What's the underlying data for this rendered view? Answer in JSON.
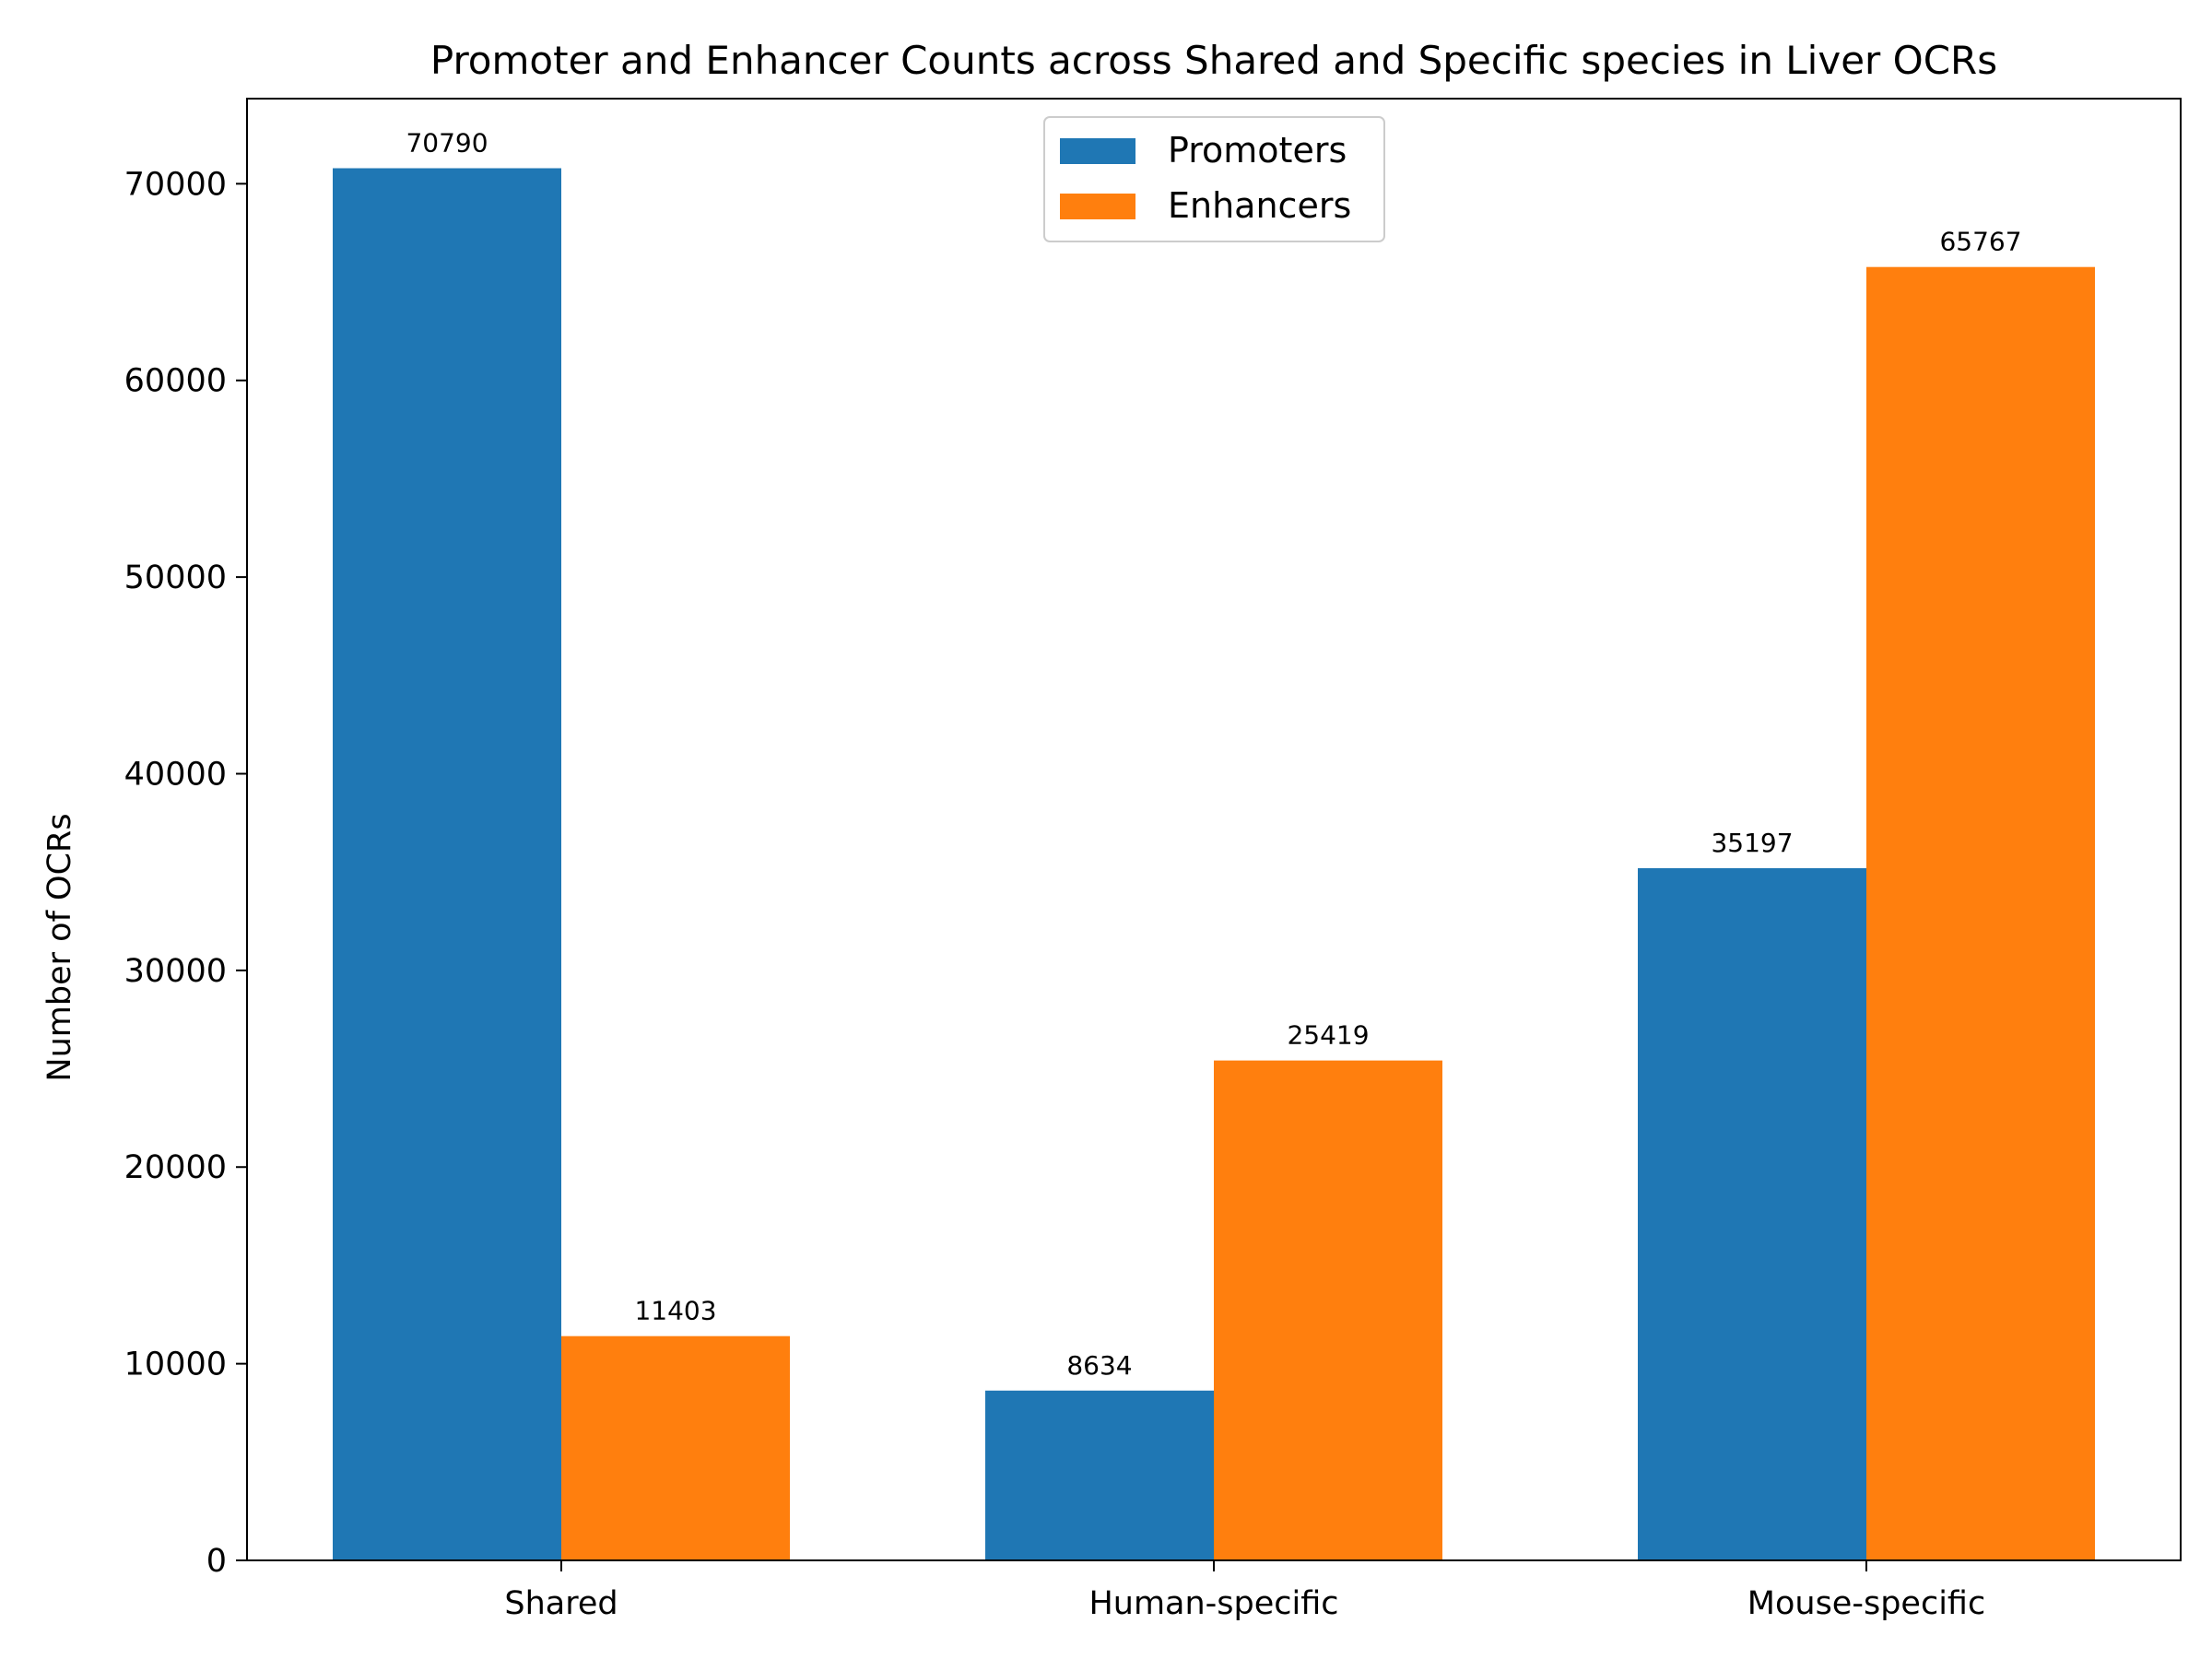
{
  "chart_data": {
    "type": "bar",
    "title": "Promoter and Enhancer Counts across Shared and Specific species in Liver OCRs",
    "xlabel": "",
    "ylabel": "Number of OCRs",
    "categories": [
      "Shared",
      "Human-specific",
      "Mouse-specific"
    ],
    "series": [
      {
        "name": "Promoters",
        "color": "#1f77b4",
        "values": [
          70790,
          8634,
          35197
        ]
      },
      {
        "name": "Enhancers",
        "color": "#ff7f0e",
        "values": [
          11403,
          25419,
          65767
        ]
      }
    ],
    "ylim": [
      0,
      74329
    ],
    "yticks": [
      0,
      10000,
      20000,
      30000,
      40000,
      50000,
      60000,
      70000
    ],
    "legend_position": "top-center",
    "grid": false
  }
}
